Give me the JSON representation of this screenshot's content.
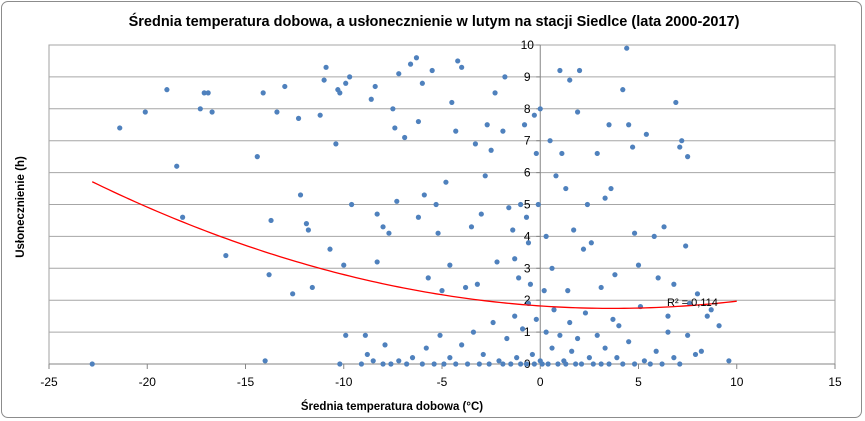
{
  "chart_data": {
    "type": "scatter",
    "title": "Średnia temperatura dobowa, a usłonecznienie w lutym na stacji Siedlce (lata 2000-2017)",
    "xlabel": "Średnia temperatura dobowa (°C)",
    "ylabel": "Usłonecznienie (h)",
    "xlim": [
      -25,
      15
    ],
    "ylim": [
      0,
      10
    ],
    "x_ticks": [
      -25,
      -20,
      -15,
      -10,
      -5,
      0,
      5,
      10,
      15
    ],
    "y_ticks": [
      0,
      1,
      2,
      3,
      4,
      5,
      6,
      7,
      8,
      9,
      10
    ],
    "grid": "horizontal",
    "marker_color": "#4f81bd",
    "trend_color": "#ff0000",
    "trendline": {
      "type": "polynomial-2",
      "coefficients": [
        1.82,
        -0.0417,
        0.00566
      ],
      "x_range": [
        -22.8,
        10
      ],
      "label": "R² = 0,114"
    },
    "points": [
      {
        "x": -22.8,
        "y": 0.0
      },
      {
        "x": -21.4,
        "y": 7.4
      },
      {
        "x": -20.1,
        "y": 7.9
      },
      {
        "x": -19.0,
        "y": 8.6
      },
      {
        "x": -18.5,
        "y": 6.2
      },
      {
        "x": -18.2,
        "y": 4.6
      },
      {
        "x": -17.3,
        "y": 8.0
      },
      {
        "x": -17.1,
        "y": 8.5
      },
      {
        "x": -16.9,
        "y": 8.5
      },
      {
        "x": -16.7,
        "y": 7.9
      },
      {
        "x": -16.0,
        "y": 3.4
      },
      {
        "x": -14.4,
        "y": 6.5
      },
      {
        "x": -14.1,
        "y": 8.5
      },
      {
        "x": -13.7,
        "y": 4.5
      },
      {
        "x": -13.8,
        "y": 2.8
      },
      {
        "x": -13.4,
        "y": 7.9
      },
      {
        "x": -13.0,
        "y": 8.7
      },
      {
        "x": -12.6,
        "y": 2.2
      },
      {
        "x": -12.3,
        "y": 7.7
      },
      {
        "x": -12.2,
        "y": 5.3
      },
      {
        "x": -11.9,
        "y": 4.4
      },
      {
        "x": -11.8,
        "y": 4.2
      },
      {
        "x": -11.6,
        "y": 2.4
      },
      {
        "x": -11.2,
        "y": 7.8
      },
      {
        "x": -11.0,
        "y": 8.9
      },
      {
        "x": -10.9,
        "y": 9.3
      },
      {
        "x": -10.7,
        "y": 3.6
      },
      {
        "x": -10.4,
        "y": 6.9
      },
      {
        "x": -10.3,
        "y": 8.6
      },
      {
        "x": -10.2,
        "y": 8.5
      },
      {
        "x": -10.0,
        "y": 3.1
      },
      {
        "x": -9.9,
        "y": 8.8
      },
      {
        "x": -9.7,
        "y": 9.0
      },
      {
        "x": -9.6,
        "y": 5.0
      },
      {
        "x": -8.9,
        "y": 0.9
      },
      {
        "x": -8.6,
        "y": 8.3
      },
      {
        "x": -8.4,
        "y": 8.7
      },
      {
        "x": -8.3,
        "y": 4.7
      },
      {
        "x": -8.3,
        "y": 3.2
      },
      {
        "x": -8.0,
        "y": 4.3
      },
      {
        "x": -7.7,
        "y": 4.1
      },
      {
        "x": -7.5,
        "y": 8.0
      },
      {
        "x": -7.4,
        "y": 7.4
      },
      {
        "x": -7.3,
        "y": 5.1
      },
      {
        "x": -7.2,
        "y": 9.1
      },
      {
        "x": -6.9,
        "y": 7.1
      },
      {
        "x": -6.6,
        "y": 9.4
      },
      {
        "x": -6.3,
        "y": 9.6
      },
      {
        "x": -6.2,
        "y": 7.6
      },
      {
        "x": -6.0,
        "y": 8.8
      },
      {
        "x": -6.2,
        "y": 4.6
      },
      {
        "x": -5.9,
        "y": 5.3
      },
      {
        "x": -5.7,
        "y": 2.7
      },
      {
        "x": -5.5,
        "y": 9.2
      },
      {
        "x": -5.3,
        "y": 5.0
      },
      {
        "x": -5.2,
        "y": 4.1
      },
      {
        "x": -5.0,
        "y": 2.3
      },
      {
        "x": -4.8,
        "y": 5.7
      },
      {
        "x": -4.6,
        "y": 3.1
      },
      {
        "x": -4.5,
        "y": 8.2
      },
      {
        "x": -4.3,
        "y": 7.3
      },
      {
        "x": -4.2,
        "y": 9.5
      },
      {
        "x": -4.0,
        "y": 9.3
      },
      {
        "x": -3.8,
        "y": 2.4
      },
      {
        "x": -3.5,
        "y": 4.3
      },
      {
        "x": -3.3,
        "y": 6.9
      },
      {
        "x": -3.2,
        "y": 2.5
      },
      {
        "x": -3.0,
        "y": 4.7
      },
      {
        "x": -2.8,
        "y": 5.9
      },
      {
        "x": -2.7,
        "y": 7.5
      },
      {
        "x": -2.5,
        "y": 6.7
      },
      {
        "x": -2.3,
        "y": 8.5
      },
      {
        "x": -2.2,
        "y": 3.2
      },
      {
        "x": -1.9,
        "y": 7.3
      },
      {
        "x": -1.8,
        "y": 9.0
      },
      {
        "x": -1.6,
        "y": 4.9
      },
      {
        "x": -1.4,
        "y": 4.2
      },
      {
        "x": -1.3,
        "y": 3.3
      },
      {
        "x": -1.1,
        "y": 2.7
      },
      {
        "x": -1.0,
        "y": 5.0
      },
      {
        "x": -0.8,
        "y": 7.5
      },
      {
        "x": -0.7,
        "y": 4.6
      },
      {
        "x": -0.6,
        "y": 3.8
      },
      {
        "x": -0.5,
        "y": 2.5
      },
      {
        "x": -0.3,
        "y": 7.8
      },
      {
        "x": -0.2,
        "y": 6.6
      },
      {
        "x": -0.1,
        "y": 5.0
      },
      {
        "x": 0.0,
        "y": 8.0
      },
      {
        "x": 0.2,
        "y": 2.3
      },
      {
        "x": 0.3,
        "y": 4.0
      },
      {
        "x": 0.5,
        "y": 7.0
      },
      {
        "x": 0.6,
        "y": 3.0
      },
      {
        "x": 0.8,
        "y": 5.9
      },
      {
        "x": 1.0,
        "y": 9.2
      },
      {
        "x": 1.1,
        "y": 6.6
      },
      {
        "x": 1.3,
        "y": 5.5
      },
      {
        "x": 1.4,
        "y": 2.3
      },
      {
        "x": 1.5,
        "y": 8.9
      },
      {
        "x": 1.7,
        "y": 4.2
      },
      {
        "x": 1.9,
        "y": 7.9
      },
      {
        "x": 2.0,
        "y": 9.2
      },
      {
        "x": 2.2,
        "y": 3.6
      },
      {
        "x": 2.4,
        "y": 5.0
      },
      {
        "x": 2.6,
        "y": 3.8
      },
      {
        "x": 2.9,
        "y": 6.6
      },
      {
        "x": 3.1,
        "y": 2.4
      },
      {
        "x": 3.3,
        "y": 5.2
      },
      {
        "x": 3.5,
        "y": 7.5
      },
      {
        "x": 3.6,
        "y": 5.5
      },
      {
        "x": 3.8,
        "y": 2.8
      },
      {
        "x": 4.0,
        "y": 1.2
      },
      {
        "x": 4.2,
        "y": 8.6
      },
      {
        "x": 4.4,
        "y": 9.9
      },
      {
        "x": 4.5,
        "y": 7.5
      },
      {
        "x": 4.7,
        "y": 6.8
      },
      {
        "x": 4.8,
        "y": 4.1
      },
      {
        "x": 5.0,
        "y": 3.1
      },
      {
        "x": 5.4,
        "y": 7.2
      },
      {
        "x": 5.8,
        "y": 4.0
      },
      {
        "x": 6.0,
        "y": 2.7
      },
      {
        "x": 6.3,
        "y": 4.3
      },
      {
        "x": 6.5,
        "y": 1.5
      },
      {
        "x": 6.8,
        "y": 2.5
      },
      {
        "x": 6.9,
        "y": 8.2
      },
      {
        "x": 7.1,
        "y": 6.8
      },
      {
        "x": 7.2,
        "y": 7.0
      },
      {
        "x": 7.4,
        "y": 3.7
      },
      {
        "x": 7.5,
        "y": 6.5
      },
      {
        "x": 7.6,
        "y": 1.9
      },
      {
        "x": 8.0,
        "y": 2.2
      },
      {
        "x": 8.2,
        "y": 0.4
      },
      {
        "x": 8.5,
        "y": 1.5
      },
      {
        "x": 8.7,
        "y": 1.7
      },
      {
        "x": 9.1,
        "y": 1.2
      },
      {
        "x": 9.6,
        "y": 0.1
      },
      {
        "x": -14.0,
        "y": 0.1
      },
      {
        "x": -10.2,
        "y": 0.0
      },
      {
        "x": -9.9,
        "y": 0.9
      },
      {
        "x": -9.1,
        "y": 0.0
      },
      {
        "x": -8.8,
        "y": 0.3
      },
      {
        "x": -8.5,
        "y": 0.1
      },
      {
        "x": -8.0,
        "y": 0.0
      },
      {
        "x": -7.9,
        "y": 0.6
      },
      {
        "x": -7.6,
        "y": 0.0
      },
      {
        "x": -7.2,
        "y": 0.1
      },
      {
        "x": -6.8,
        "y": 0.0
      },
      {
        "x": -6.5,
        "y": 0.2
      },
      {
        "x": -6.0,
        "y": 0.0
      },
      {
        "x": -5.8,
        "y": 0.5
      },
      {
        "x": -5.4,
        "y": 0.0
      },
      {
        "x": -5.1,
        "y": 0.9
      },
      {
        "x": -4.9,
        "y": 0.0
      },
      {
        "x": -4.6,
        "y": 0.2
      },
      {
        "x": -4.3,
        "y": 0.0
      },
      {
        "x": -4.0,
        "y": 0.6
      },
      {
        "x": -3.7,
        "y": 0.0
      },
      {
        "x": -3.4,
        "y": 1.0
      },
      {
        "x": -3.1,
        "y": 0.0
      },
      {
        "x": -2.9,
        "y": 0.3
      },
      {
        "x": -2.6,
        "y": 0.0
      },
      {
        "x": -2.4,
        "y": 1.3
      },
      {
        "x": -2.1,
        "y": 0.1
      },
      {
        "x": -1.9,
        "y": 0.0
      },
      {
        "x": -1.7,
        "y": 0.8
      },
      {
        "x": -1.5,
        "y": 0.0
      },
      {
        "x": -1.3,
        "y": 1.5
      },
      {
        "x": -1.2,
        "y": 0.2
      },
      {
        "x": -1.0,
        "y": 0.0
      },
      {
        "x": -0.9,
        "y": 1.1
      },
      {
        "x": -0.7,
        "y": 0.0
      },
      {
        "x": -0.6,
        "y": 1.9
      },
      {
        "x": -0.4,
        "y": 0.3
      },
      {
        "x": -0.3,
        "y": 0.0
      },
      {
        "x": -0.2,
        "y": 1.4
      },
      {
        "x": 0.0,
        "y": 0.1
      },
      {
        "x": 0.1,
        "y": 0.0
      },
      {
        "x": 0.3,
        "y": 1.0
      },
      {
        "x": 0.4,
        "y": 0.0
      },
      {
        "x": 0.6,
        "y": 0.5
      },
      {
        "x": 0.7,
        "y": 1.7
      },
      {
        "x": 0.9,
        "y": 0.0
      },
      {
        "x": 1.0,
        "y": 0.9
      },
      {
        "x": 1.2,
        "y": 0.1
      },
      {
        "x": 1.3,
        "y": 0.0
      },
      {
        "x": 1.5,
        "y": 1.3
      },
      {
        "x": 1.6,
        "y": 0.4
      },
      {
        "x": 1.8,
        "y": 0.0
      },
      {
        "x": 1.9,
        "y": 0.8
      },
      {
        "x": 2.1,
        "y": 0.0
      },
      {
        "x": 2.3,
        "y": 1.6
      },
      {
        "x": 2.5,
        "y": 0.2
      },
      {
        "x": 2.7,
        "y": 0.0
      },
      {
        "x": 2.9,
        "y": 0.9
      },
      {
        "x": 3.1,
        "y": 0.0
      },
      {
        "x": 3.3,
        "y": 0.5
      },
      {
        "x": 3.5,
        "y": 0.0
      },
      {
        "x": 3.7,
        "y": 1.4
      },
      {
        "x": 3.9,
        "y": 0.2
      },
      {
        "x": 4.2,
        "y": 0.0
      },
      {
        "x": 4.5,
        "y": 0.7
      },
      {
        "x": 4.8,
        "y": 0.0
      },
      {
        "x": 5.1,
        "y": 1.8
      },
      {
        "x": 5.3,
        "y": 0.1
      },
      {
        "x": 5.6,
        "y": 0.0
      },
      {
        "x": 5.9,
        "y": 0.4
      },
      {
        "x": 6.2,
        "y": 0.0
      },
      {
        "x": 6.5,
        "y": 1.0
      },
      {
        "x": 6.8,
        "y": 0.2
      },
      {
        "x": 7.1,
        "y": 0.0
      },
      {
        "x": 7.5,
        "y": 0.9
      },
      {
        "x": 7.9,
        "y": 0.3
      }
    ]
  }
}
